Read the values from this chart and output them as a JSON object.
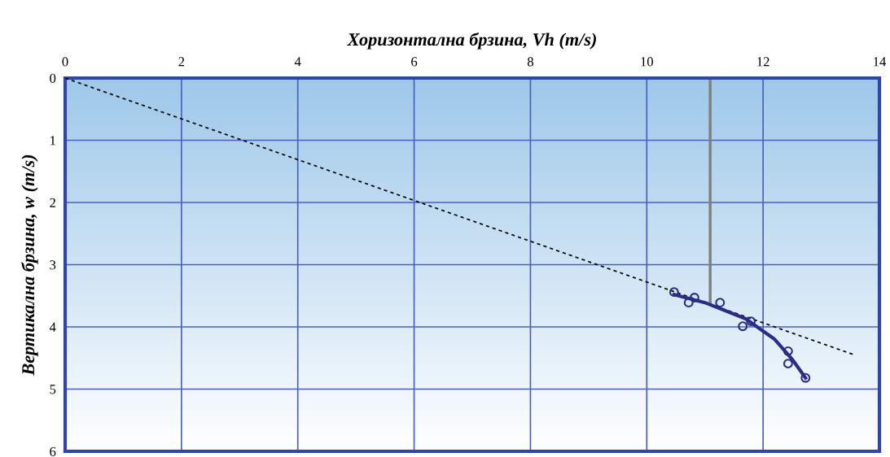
{
  "chart_data": {
    "type": "line",
    "xlabel": "Хоризонтална брзина, Vh (m/s)",
    "ylabel": "Вертикална брзина, w (m/s)",
    "xlim": [
      0,
      14
    ],
    "ylim": [
      6,
      0
    ],
    "xticks": [
      0,
      2,
      4,
      6,
      8,
      10,
      12,
      14
    ],
    "yticks": [
      0,
      1,
      2,
      3,
      4,
      5,
      6
    ],
    "grid": true,
    "series": [
      {
        "color": "#000000",
        "line_style": "dashed",
        "marker": "none",
        "x": [
          0,
          13.54
        ],
        "values": [
          0,
          4.44
        ]
      },
      {
        "color": "#808080",
        "line_style": "solid",
        "marker": "none",
        "x": [
          11.09,
          11.09
        ],
        "values": [
          0.05,
          3.6
        ]
      },
      {
        "type": "scatter",
        "color": "#2b2c85",
        "marker": "circle",
        "x": [
          10.47,
          10.72,
          10.82,
          11.26,
          11.65,
          11.79,
          12.43,
          12.43,
          12.73
        ],
        "values": [
          3.44,
          3.61,
          3.53,
          3.61,
          3.99,
          3.91,
          4.39,
          4.59,
          4.82
        ]
      },
      {
        "color": "#2b2c85",
        "line_style": "solid",
        "marker": "none",
        "x": [
          10.47,
          11.0,
          11.7,
          12.2,
          12.5,
          12.73
        ],
        "values": [
          3.48,
          3.61,
          3.87,
          4.2,
          4.52,
          4.82
        ]
      }
    ]
  }
}
